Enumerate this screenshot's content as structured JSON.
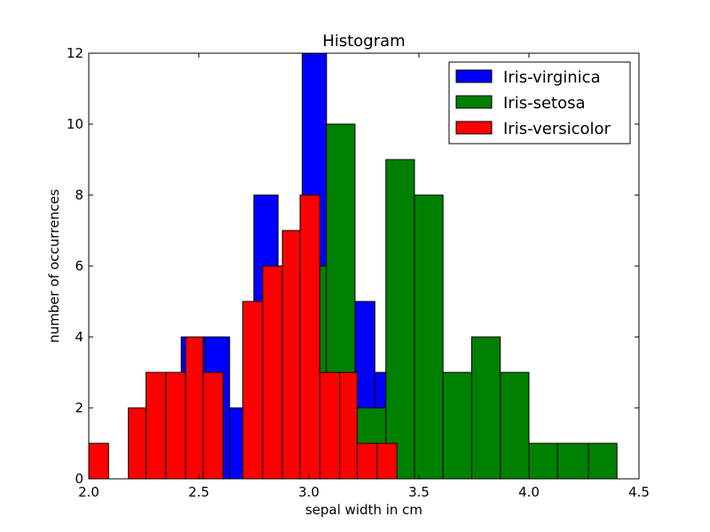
{
  "chart_data": {
    "type": "bar",
    "title": "Histogram",
    "xlabel": "sepal width in cm",
    "ylabel": "number of occurrences",
    "xlim": [
      2.0,
      4.5
    ],
    "ylim": [
      0,
      12
    ],
    "xticks": [
      "2.0",
      "2.5",
      "3.0",
      "3.5",
      "4.0",
      "4.5"
    ],
    "xtick_values": [
      2.0,
      2.5,
      3.0,
      3.5,
      4.0,
      4.5
    ],
    "yticks": [
      "0",
      "2",
      "4",
      "6",
      "8",
      "10",
      "12"
    ],
    "ytick_values": [
      0,
      2,
      4,
      6,
      8,
      10,
      12
    ],
    "grid": false,
    "legend_position": "top-right",
    "series": [
      {
        "name": "Iris-virginica",
        "color": "#0000ff",
        "bins": [
          [
            2.2,
            2.31,
            1
          ],
          [
            2.31,
            2.42,
            0
          ],
          [
            2.42,
            2.53,
            4
          ],
          [
            2.53,
            2.64,
            4
          ],
          [
            2.64,
            2.75,
            2
          ],
          [
            2.75,
            2.86,
            8
          ],
          [
            2.86,
            2.97,
            4
          ],
          [
            2.97,
            3.08,
            12
          ],
          [
            3.08,
            3.19,
            4
          ],
          [
            3.19,
            3.3,
            5
          ],
          [
            3.3,
            3.41,
            3
          ],
          [
            3.41,
            3.52,
            0
          ],
          [
            3.52,
            3.63,
            0
          ],
          [
            3.63,
            3.74,
            0
          ],
          [
            3.74,
            3.85,
            2
          ]
        ]
      },
      {
        "name": "Iris-setosa",
        "color": "#008000",
        "bins": [
          [
            2.3,
            2.43,
            1
          ],
          [
            2.43,
            2.56,
            0
          ],
          [
            2.56,
            2.69,
            0
          ],
          [
            2.69,
            2.82,
            0
          ],
          [
            2.82,
            2.95,
            1
          ],
          [
            2.95,
            3.08,
            6
          ],
          [
            3.08,
            3.21,
            10
          ],
          [
            3.21,
            3.35,
            2
          ],
          [
            3.35,
            3.48,
            9
          ],
          [
            3.48,
            3.61,
            8
          ],
          [
            3.61,
            3.74,
            3
          ],
          [
            3.74,
            3.87,
            4
          ],
          [
            3.87,
            4.0,
            3
          ],
          [
            4.0,
            4.13,
            1
          ],
          [
            4.13,
            4.27,
            1
          ],
          [
            4.27,
            4.4,
            1
          ]
        ]
      },
      {
        "name": "Iris-versicolor",
        "color": "#ff0000",
        "bins": [
          [
            2.0,
            2.09,
            1
          ],
          [
            2.09,
            2.18,
            0
          ],
          [
            2.18,
            2.26,
            2
          ],
          [
            2.26,
            2.35,
            3
          ],
          [
            2.35,
            2.44,
            3
          ],
          [
            2.44,
            2.52,
            4
          ],
          [
            2.52,
            2.61,
            3
          ],
          [
            2.61,
            2.7,
            0
          ],
          [
            2.7,
            2.79,
            5
          ],
          [
            2.79,
            2.88,
            6
          ],
          [
            2.88,
            2.96,
            7
          ],
          [
            2.96,
            3.05,
            8
          ],
          [
            3.05,
            3.14,
            3
          ],
          [
            3.14,
            3.22,
            3
          ],
          [
            3.22,
            3.31,
            1
          ],
          [
            3.31,
            3.4,
            1
          ]
        ]
      }
    ]
  }
}
